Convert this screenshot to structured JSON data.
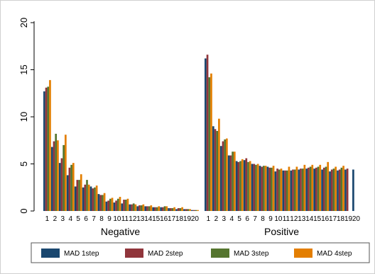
{
  "chart_data": {
    "type": "bar",
    "ylim": [
      0,
      20
    ],
    "yticks": [
      "0",
      "5",
      "10",
      "15",
      "20"
    ],
    "grid": false,
    "legend_position": "bottom",
    "groups": [
      {
        "label": "Negative",
        "categories": [
          "1",
          "2",
          "3",
          "4",
          "5",
          "6",
          "7",
          "8",
          "9",
          "10",
          "11",
          "12",
          "13",
          "14",
          "15",
          "16",
          "17",
          "18",
          "19",
          "20"
        ],
        "series": [
          {
            "name": "MAD 1step",
            "values": [
              12.7,
              6.8,
              5.1,
              3.8,
              2.6,
              2.5,
              2.6,
              1.8,
              1.0,
              0.9,
              0.8,
              0.7,
              0.5,
              0.5,
              0.4,
              0.4,
              0.3,
              0.2,
              0.2,
              0.1
            ]
          },
          {
            "name": "MAD 2step",
            "values": [
              13.1,
              7.4,
              5.6,
              4.6,
              3.3,
              2.8,
              2.4,
              1.7,
              1.1,
              1.1,
              1.2,
              0.7,
              0.6,
              0.5,
              0.4,
              0.4,
              0.3,
              0.3,
              0.2,
              0.1
            ]
          },
          {
            "name": "MAD 3step",
            "values": [
              13.2,
              8.2,
              7.0,
              4.9,
              3.3,
              3.3,
              2.5,
              1.7,
              1.3,
              1.3,
              1.2,
              0.8,
              0.6,
              0.5,
              0.4,
              0.5,
              0.3,
              0.3,
              0.2,
              0.1
            ]
          },
          {
            "name": "MAD 4step",
            "values": [
              13.9,
              7.5,
              8.1,
              5.1,
              3.9,
              2.8,
              2.7,
              1.9,
              1.4,
              1.5,
              1.3,
              0.7,
              0.7,
              0.6,
              0.5,
              0.5,
              0.4,
              0.4,
              0.2,
              0.1
            ]
          }
        ]
      },
      {
        "label": "Positive",
        "categories": [
          "1",
          "2",
          "3",
          "4",
          "5",
          "6",
          "7",
          "8",
          "9",
          "10",
          "11",
          "12",
          "13",
          "14",
          "15",
          "16",
          "17",
          "18",
          "19",
          "20"
        ],
        "series": [
          {
            "name": "MAD 1step",
            "values": [
              16.2,
              9.0,
              6.9,
              5.9,
              5.3,
              5.4,
              5.0,
              4.8,
              4.7,
              4.2,
              4.3,
              4.3,
              4.4,
              4.5,
              4.5,
              4.4,
              4.2,
              4.3,
              4.4,
              4.4
            ]
          },
          {
            "name": "MAD 2step",
            "values": [
              16.6,
              8.7,
              7.4,
              5.9,
              5.2,
              5.6,
              5.0,
              4.7,
              4.6,
              4.5,
              4.3,
              4.4,
              4.5,
              4.6,
              4.6,
              4.6,
              4.4,
              4.4,
              4.5,
              null
            ]
          },
          {
            "name": "MAD 3step",
            "values": [
              14.2,
              8.5,
              7.6,
              6.3,
              5.3,
              5.2,
              4.9,
              4.8,
              4.6,
              4.4,
              4.3,
              4.4,
              4.5,
              4.7,
              4.7,
              4.7,
              4.5,
              4.6,
              null,
              null
            ]
          },
          {
            "name": "MAD 4step",
            "values": [
              14.6,
              9.8,
              7.7,
              6.3,
              5.5,
              5.3,
              5.0,
              4.8,
              4.8,
              4.5,
              4.7,
              4.7,
              4.9,
              4.9,
              4.9,
              5.2,
              4.7,
              4.8,
              null,
              null
            ]
          }
        ]
      }
    ]
  },
  "colors": {
    "MAD 1step": "#1a476f",
    "MAD 2step": "#90353b",
    "MAD 3step": "#55752f",
    "MAD 4step": "#e37e00",
    "axis": "#000000",
    "border": "#d0d0d0"
  }
}
